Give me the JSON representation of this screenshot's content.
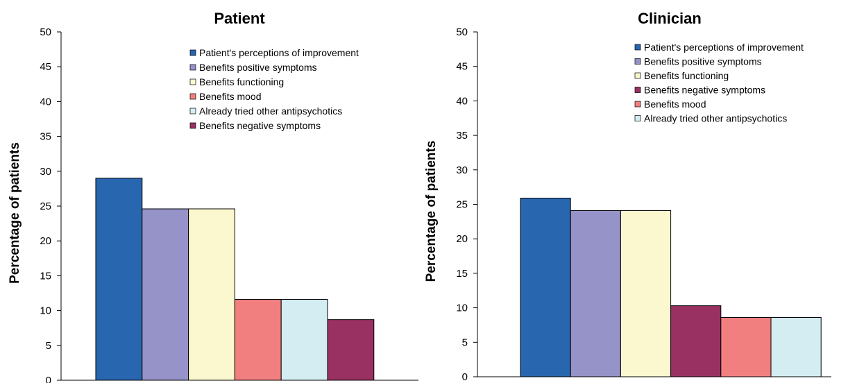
{
  "chart_data": [
    {
      "type": "bar",
      "title": "Patient",
      "xlabel": "",
      "ylabel": "Percentage of patients",
      "ylim": [
        0,
        50
      ],
      "yticks": [
        0,
        5,
        10,
        15,
        20,
        25,
        30,
        35,
        40,
        45,
        50
      ],
      "grid": false,
      "legend_position": "top-right",
      "series": [
        {
          "name": "Patient's perceptions of improvement",
          "value": 29,
          "color": "#2866b0"
        },
        {
          "name": "Benefits positive symptoms",
          "value": 24.6,
          "color": "#9593c8"
        },
        {
          "name": "Benefits functioning",
          "value": 24.6,
          "color": "#fbf8d0"
        },
        {
          "name": "Benefits mood",
          "value": 11.6,
          "color": "#f27f7f"
        },
        {
          "name": "Already tried other antipsychotics",
          "value": 11.6,
          "color": "#d4edf3"
        },
        {
          "name": "Benefits negative symptoms",
          "value": 8.7,
          "color": "#9a3163"
        }
      ]
    },
    {
      "type": "bar",
      "title": "Clinician",
      "xlabel": "",
      "ylabel": "Percentage of patients",
      "ylim": [
        0,
        50
      ],
      "yticks": [
        0,
        5,
        10,
        15,
        20,
        25,
        30,
        35,
        40,
        45,
        50
      ],
      "grid": false,
      "legend_position": "top-right",
      "series": [
        {
          "name": "Patient's perceptions of improvement",
          "value": 25.9,
          "color": "#2866b0"
        },
        {
          "name": "Benefits positive symptoms",
          "value": 24.1,
          "color": "#9593c8"
        },
        {
          "name": "Benefits functioning",
          "value": 24.1,
          "color": "#fbf8d0"
        },
        {
          "name": "Benefits negative symptoms",
          "value": 10.3,
          "color": "#9a3163"
        },
        {
          "name": "Benefits mood",
          "value": 8.6,
          "color": "#f27f7f"
        },
        {
          "name": "Already tried other antipsychotics",
          "value": 8.6,
          "color": "#d4edf3"
        }
      ]
    }
  ]
}
